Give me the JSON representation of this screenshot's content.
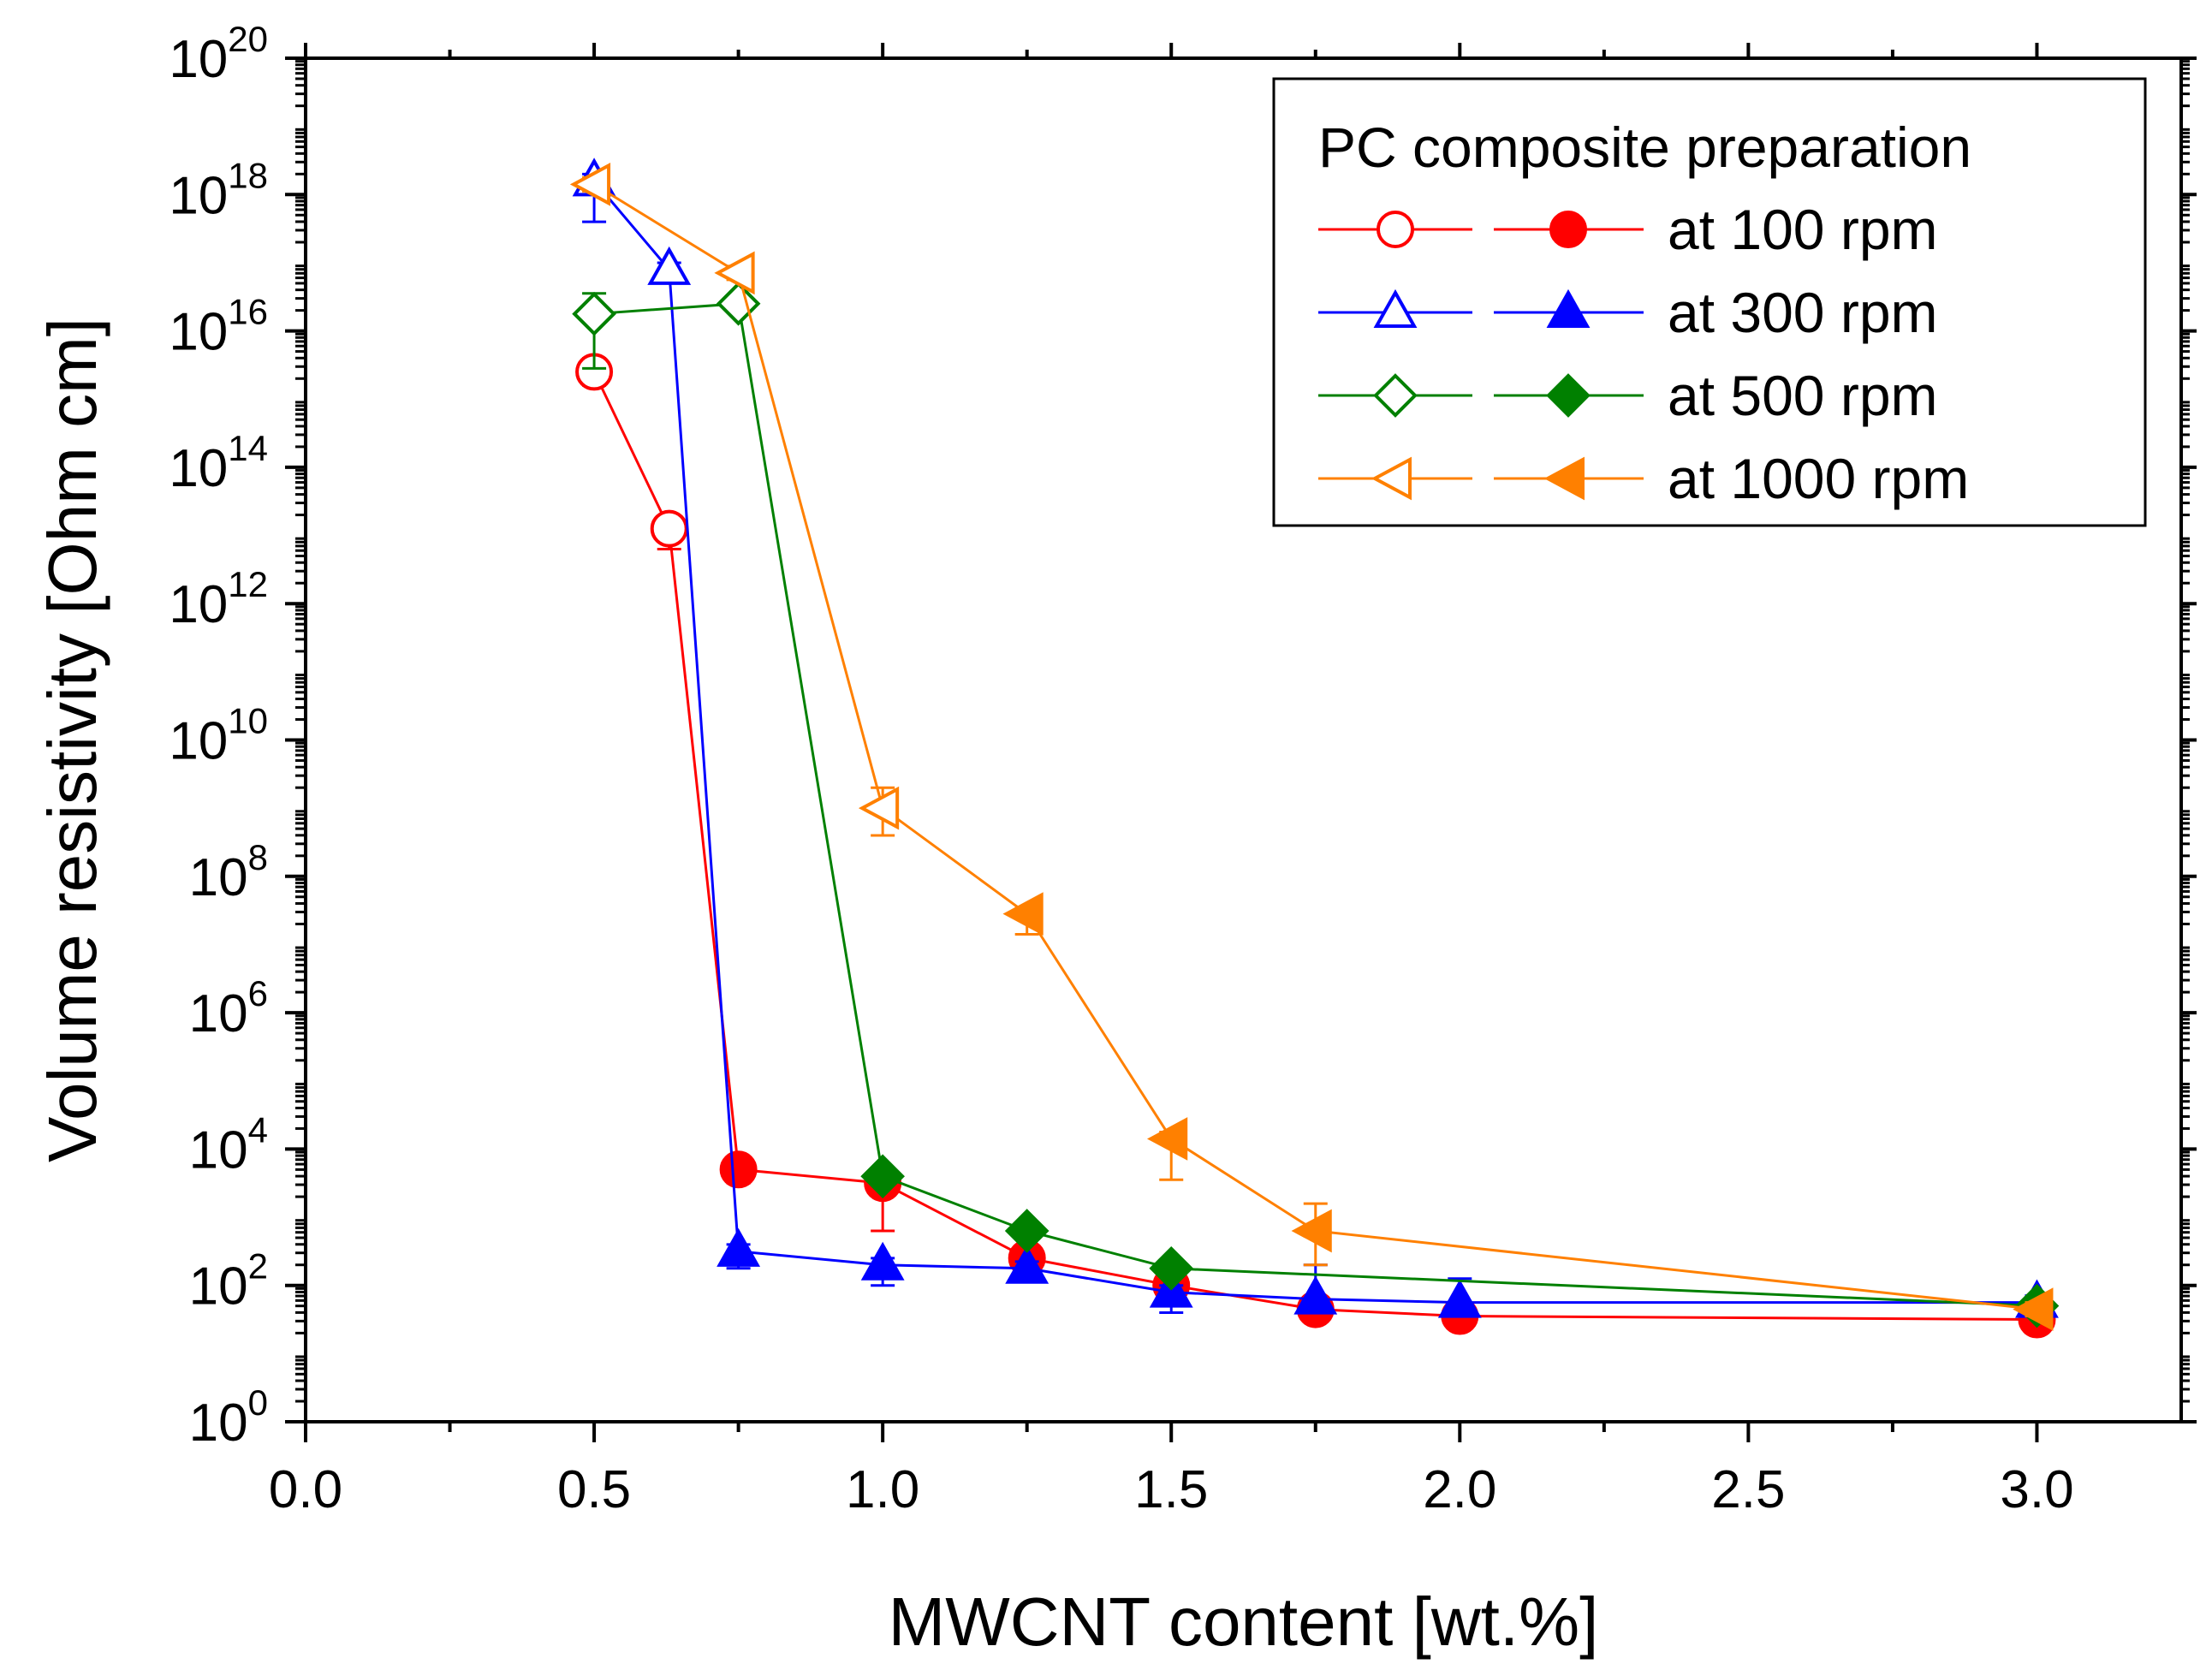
{
  "chart_data": {
    "type": "line",
    "xlabel": "MWCNT content [wt.%]",
    "ylabel": "Volume resistivity [Ohm cm]",
    "xlim": [
      0.0,
      3.25
    ],
    "ylim_log10": [
      0,
      20
    ],
    "y_scale": "log10",
    "x_ticks": [
      "0.0",
      "0.5",
      "1.0",
      "1.5",
      "2.0",
      "2.5",
      "3.0"
    ],
    "x_tick_values": [
      0.0,
      0.5,
      1.0,
      1.5,
      2.0,
      2.5,
      3.0
    ],
    "y_tick_base": "10",
    "y_tick_exponents": [
      "0",
      "2",
      "4",
      "6",
      "8",
      "10",
      "12",
      "14",
      "16",
      "18",
      "20"
    ],
    "legend": {
      "title": "PC composite preparation",
      "position": "top-right",
      "entries": [
        "at 100 rpm",
        "at 300 rpm",
        "at 500 rpm",
        "at 1000 rpm"
      ]
    },
    "series": [
      {
        "name": "at 100 rpm",
        "color": "#ff0000",
        "marker": "circle",
        "x": [
          0.5,
          0.63,
          0.75,
          1.0,
          1.25,
          1.5,
          1.75,
          2.0,
          3.0
        ],
        "log10_y": [
          15.4,
          13.1,
          3.7,
          3.5,
          2.4,
          2.0,
          1.65,
          1.55,
          1.5
        ],
        "filled": [
          false,
          false,
          true,
          true,
          true,
          true,
          true,
          true,
          true
        ],
        "err_lo": [
          0.2,
          0.3,
          0.2,
          0.7,
          0.2,
          0.2,
          0.1,
          0.1,
          0.2
        ],
        "err_hi": [
          0.2,
          0.1,
          0.1,
          0.1,
          0.1,
          0.1,
          0.1,
          0.1,
          0.1
        ]
      },
      {
        "name": "at 300 rpm",
        "color": "#0000ff",
        "marker": "triangle-up",
        "x": [
          0.5,
          0.63,
          0.75,
          1.0,
          1.25,
          1.5,
          1.75,
          2.0,
          3.0
        ],
        "log10_y": [
          18.2,
          16.9,
          2.5,
          2.3,
          2.25,
          1.9,
          1.8,
          1.75,
          1.75
        ],
        "filled": [
          false,
          false,
          true,
          true,
          true,
          true,
          true,
          true,
          true
        ],
        "err_lo": [
          0.6,
          0.1,
          0.25,
          0.3,
          0.1,
          0.3,
          0.1,
          0.1,
          0.1
        ],
        "err_hi": [
          0.1,
          0.1,
          0.1,
          0.1,
          0.1,
          0.1,
          0.5,
          0.35,
          0.1
        ]
      },
      {
        "name": "at 500 rpm",
        "color": "#008000",
        "marker": "diamond",
        "x": [
          0.5,
          0.75,
          1.0,
          1.25,
          1.5,
          3.0
        ],
        "log10_y": [
          16.25,
          16.4,
          3.6,
          2.8,
          2.25,
          1.7
        ],
        "filled": [
          false,
          false,
          true,
          true,
          true,
          true
        ],
        "err_lo": [
          0.8,
          0.1,
          0.1,
          0.1,
          0.1,
          0.1
        ],
        "err_hi": [
          0.3,
          0.1,
          0.1,
          0.1,
          0.1,
          0.1
        ]
      },
      {
        "name": "at 1000 rpm",
        "color": "#ff8000",
        "marker": "triangle-left",
        "x": [
          0.5,
          0.75,
          1.0,
          1.25,
          1.5,
          1.75,
          3.0
        ],
        "log10_y": [
          18.15,
          16.85,
          9.0,
          7.45,
          4.15,
          2.8,
          1.65
        ],
        "filled": [
          false,
          false,
          false,
          true,
          true,
          true,
          true
        ],
        "err_lo": [
          0.1,
          0.1,
          0.4,
          0.3,
          0.6,
          0.5,
          0.1
        ],
        "err_hi": [
          0.1,
          0.1,
          0.3,
          0.1,
          0.1,
          0.4,
          0.1
        ]
      }
    ]
  }
}
